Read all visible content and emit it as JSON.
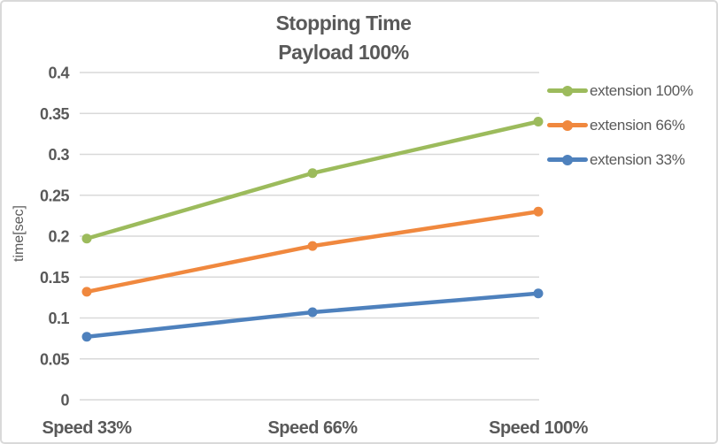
{
  "header": {
    "title_line1": "Stopping Time",
    "title_line2": "Payload 100%"
  },
  "chart_data": {
    "type": "line",
    "title": "Stopping Time\nPayload 100%",
    "categories": [
      "Speed 33%",
      "Speed 66%",
      "Speed 100%"
    ],
    "series": [
      {
        "name": "extension 100%",
        "color": "#9cbb5c",
        "values": [
          0.197,
          0.277,
          0.34
        ]
      },
      {
        "name": "extension 66%",
        "color": "#f0883e",
        "values": [
          0.132,
          0.188,
          0.23
        ]
      },
      {
        "name": "extension 33%",
        "color": "#4e81bd",
        "values": [
          0.077,
          0.107,
          0.13
        ]
      }
    ],
    "xlabel": "",
    "ylabel": "time[sec]",
    "ylim": [
      0,
      0.4
    ],
    "ytick_step": 0.05,
    "ytick_labels": [
      "0",
      "0.05",
      "0.1",
      "0.15",
      "0.2",
      "0.25",
      "0.3",
      "0.35",
      "0.4"
    ],
    "grid": true,
    "legend_position": "right",
    "marker": "circle"
  },
  "colors": {
    "text": "#595959",
    "grid": "#d9d9d9",
    "frame_border": "#d9d9d9",
    "background": "#ffffff"
  }
}
